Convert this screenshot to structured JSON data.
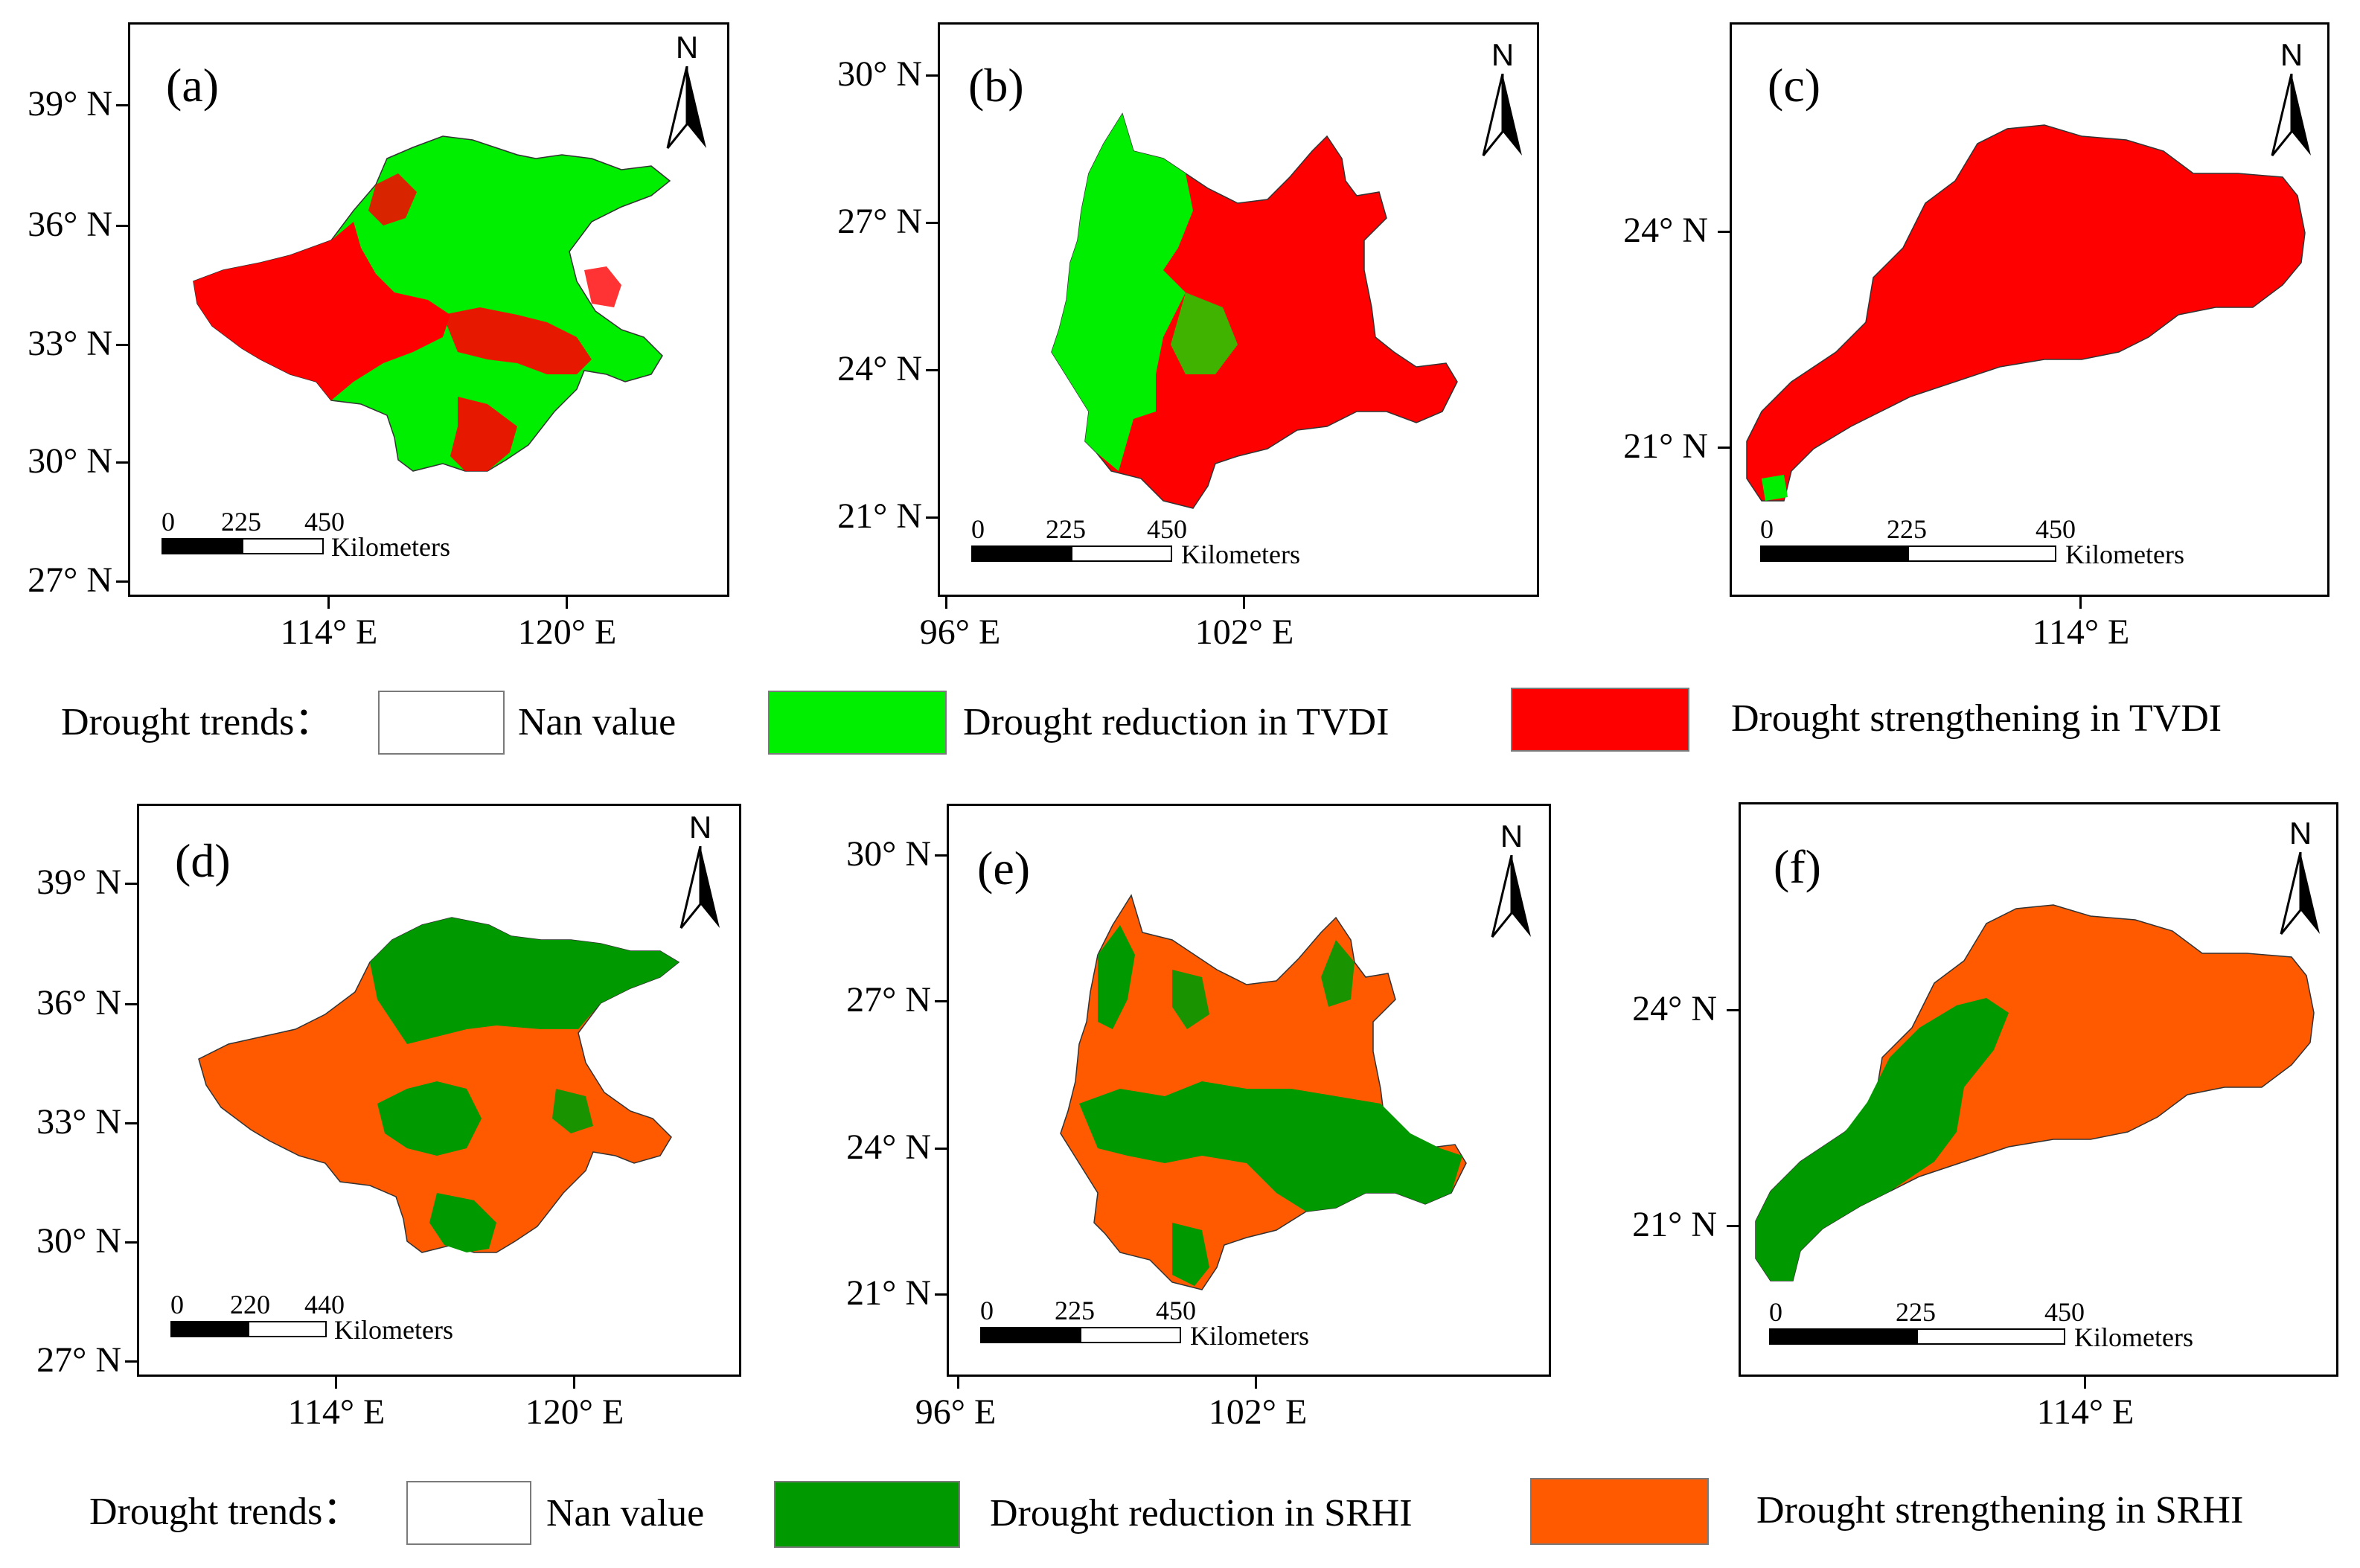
{
  "figure": {
    "panels": [
      {
        "id": "a",
        "label": "(a)",
        "scale_ticks": [
          "0",
          "225",
          "450"
        ],
        "scale_unit": "Kilometers",
        "y_ticks": [
          "39° N",
          "36° N",
          "33° N",
          "30° N",
          "27° N"
        ],
        "x_ticks": [
          "114° E",
          "120° E"
        ],
        "north": "N",
        "palette": [
          "#00ee00",
          "#ff0000"
        ]
      },
      {
        "id": "b",
        "label": "(b)",
        "scale_ticks": [
          "0",
          "225",
          "450"
        ],
        "scale_unit": "Kilometers",
        "y_ticks": [
          "30° N",
          "27° N",
          "24° N",
          "21° N"
        ],
        "x_ticks": [
          "96° E",
          "102° E"
        ],
        "north": "N",
        "palette": [
          "#00ee00",
          "#ff0000"
        ]
      },
      {
        "id": "c",
        "label": "(c)",
        "scale_ticks": [
          "0",
          "225",
          "450"
        ],
        "scale_unit": "Kilometers",
        "y_ticks": [
          "24° N",
          "21° N"
        ],
        "x_ticks": [
          "114° E"
        ],
        "north": "N",
        "palette": [
          "#00ee00",
          "#ff0000"
        ]
      },
      {
        "id": "d",
        "label": "(d)",
        "scale_ticks": [
          "0",
          "220",
          "440"
        ],
        "scale_unit": "Kilometers",
        "y_ticks": [
          "39° N",
          "36° N",
          "33° N",
          "30° N",
          "27° N"
        ],
        "x_ticks": [
          "114° E",
          "120° E"
        ],
        "north": "N",
        "palette": [
          "#009900",
          "#ff5a00"
        ]
      },
      {
        "id": "e",
        "label": "(e)",
        "scale_ticks": [
          "0",
          "225",
          "450"
        ],
        "scale_unit": "Kilometers",
        "y_ticks": [
          "30° N",
          "27° N",
          "24° N",
          "21° N"
        ],
        "x_ticks": [
          "96° E",
          "102° E"
        ],
        "north": "N",
        "palette": [
          "#009900",
          "#ff5a00"
        ]
      },
      {
        "id": "f",
        "label": "(f)",
        "scale_ticks": [
          "0",
          "225",
          "450"
        ],
        "scale_unit": "Kilometers",
        "y_ticks": [
          "24° N",
          "21° N"
        ],
        "x_ticks": [
          "114° E"
        ],
        "north": "N",
        "palette": [
          "#009900",
          "#ff5a00"
        ]
      }
    ],
    "legend_tvdi": {
      "title": "Drought trends：",
      "items": [
        {
          "label": "Nan value",
          "color": "#ffffff"
        },
        {
          "label": "Drought reduction in TVDI",
          "color": "#00ee00"
        },
        {
          "label": "Drought strengthening in TVDI",
          "color": "#ff0000"
        }
      ]
    },
    "legend_srhi": {
      "title": "Drought trends：",
      "items": [
        {
          "label": "Nan value",
          "color": "#ffffff"
        },
        {
          "label": "Drought reduction in SRHI",
          "color": "#009900"
        },
        {
          "label": "Drought strengthening in SRHI",
          "color": "#ff5a00"
        }
      ]
    }
  }
}
